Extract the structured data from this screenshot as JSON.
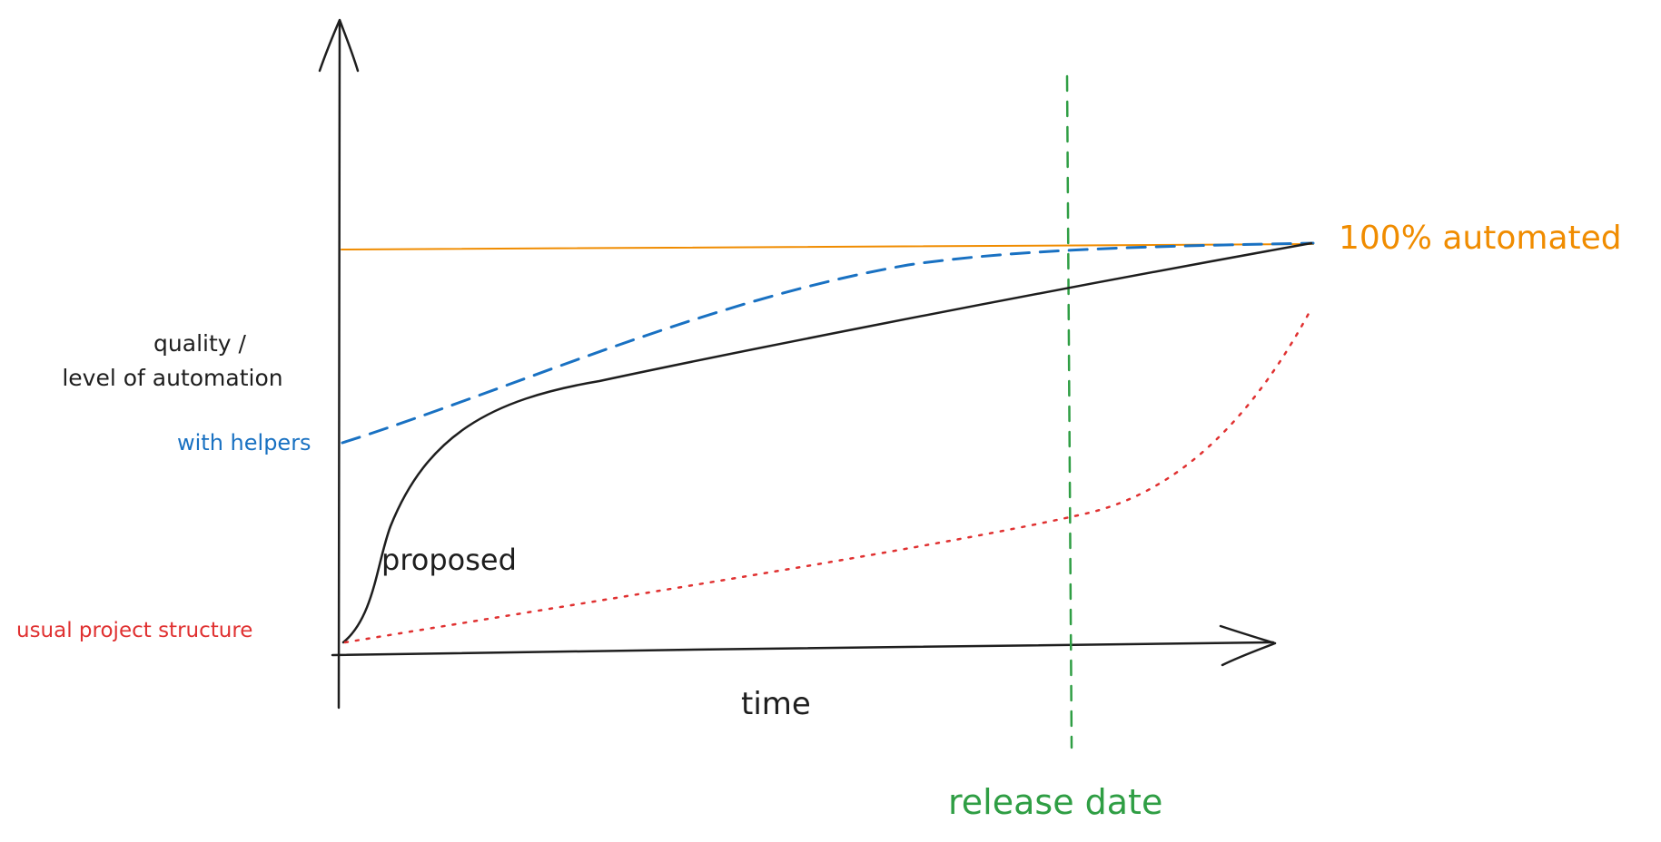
{
  "labels": {
    "y_axis_line1": "quality /",
    "y_axis_line2": "level of automation",
    "x_axis": "time",
    "with_helpers": "with helpers",
    "proposed": "proposed",
    "usual_project_structure": "usual project structure",
    "automated_100": "100% automated",
    "release_date": "release date"
  },
  "colors": {
    "axes": "#1e1e1e",
    "proposed": "#1e1e1e",
    "with_helpers": "#1971c2",
    "usual_project_structure": "#e03131",
    "automated_100": "#f08c00",
    "release_date": "#2f9e44"
  }
}
